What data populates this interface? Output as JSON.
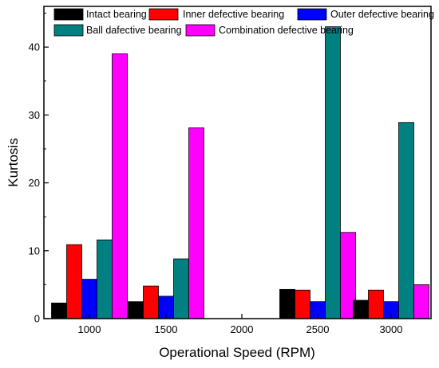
{
  "chart_data": {
    "type": "bar",
    "title": "",
    "xlabel": "Operational Speed (RPM)",
    "ylabel": "Kurtosis",
    "categories": [
      "1000",
      "1500",
      "2000",
      "2500",
      "3000"
    ],
    "ylim": [
      0,
      46
    ],
    "yticks": [
      0,
      10,
      20,
      30,
      40
    ],
    "grid": false,
    "legend_position": "top",
    "series": [
      {
        "name": "Intact bearing",
        "color": "#000000",
        "values": [
          2.3,
          2.5,
          0,
          4.3,
          2.7
        ]
      },
      {
        "name": "Inner defective bearing",
        "color": "#ff0000",
        "values": [
          10.9,
          4.8,
          0,
          4.2,
          4.2
        ]
      },
      {
        "name": "Outer defective bearing",
        "color": "#0000ff",
        "values": [
          5.8,
          3.3,
          0,
          2.5,
          2.5
        ]
      },
      {
        "name": "Ball dafective bearing",
        "color": "#008080",
        "values": [
          11.6,
          8.8,
          0,
          43.0,
          28.9
        ]
      },
      {
        "name": "Combination defective bearing",
        "color": "#ff00ff",
        "values": [
          39.0,
          28.1,
          0,
          12.7,
          5.0
        ]
      }
    ]
  }
}
